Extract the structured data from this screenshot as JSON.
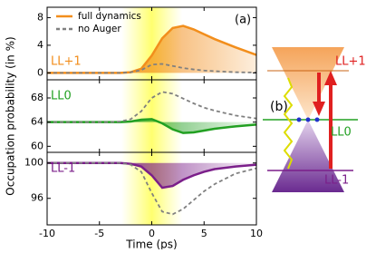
{
  "chart_data": [
    {
      "type": "line",
      "label": "LL+1",
      "annotation": "(a)",
      "label_color": "#f28e1c",
      "x": [
        -10,
        -8,
        -6,
        -4,
        -3,
        -2,
        -1,
        0,
        1,
        2,
        3,
        4,
        5,
        6,
        8,
        10
      ],
      "xlim": [
        -10,
        10
      ],
      "ylim": [
        -1,
        9.5
      ],
      "yticks": [
        0,
        4,
        8
      ],
      "series": [
        {
          "name": "full dynamics",
          "color": "#f28e1c",
          "values": [
            0,
            0,
            0,
            0,
            0,
            0.1,
            0.6,
            2.5,
            5,
            6.5,
            6.8,
            6.3,
            5.6,
            4.9,
            3.7,
            2.6
          ]
        },
        {
          "name": "no Auger",
          "color": "#808080",
          "dashed": true,
          "values": [
            0,
            0,
            0,
            0,
            0,
            0.1,
            0.4,
            1.2,
            1.3,
            1,
            0.7,
            0.5,
            0.35,
            0.25,
            0.1,
            0.05
          ]
        }
      ]
    },
    {
      "type": "line",
      "label": "LL0",
      "label_color": "#22a022",
      "ylabel": "Occupation probability  (in %)",
      "x": [
        -10,
        -8,
        -6,
        -4,
        -3,
        -2,
        -1,
        0,
        1,
        2,
        3,
        4,
        5,
        6,
        8,
        10
      ],
      "xlim": [
        -10,
        10
      ],
      "ylim": [
        59,
        71
      ],
      "yticks": [
        60,
        64,
        68
      ],
      "series": [
        {
          "color": "#22a022",
          "values": [
            64,
            64,
            64,
            64,
            64,
            64.1,
            64.4,
            64.5,
            63.8,
            62.8,
            62.2,
            62.3,
            62.6,
            62.9,
            63.3,
            63.6
          ]
        },
        {
          "color": "#808080",
          "dashed": true,
          "values": [
            64,
            64,
            64,
            64,
            64.1,
            64.5,
            65.8,
            68,
            69,
            68.7,
            67.9,
            67.1,
            66.4,
            65.9,
            65.1,
            64.6
          ]
        }
      ]
    },
    {
      "type": "line",
      "label": "LL-1",
      "label_color": "#7b1f8a",
      "xlabel": "Time  (ps)",
      "x": [
        -10,
        -8,
        -6,
        -4,
        -3,
        -2,
        -1,
        0,
        1,
        2,
        3,
        4,
        5,
        6,
        8,
        10
      ],
      "xlim": [
        -10,
        10
      ],
      "xticks": [
        -10,
        -5,
        0,
        5,
        10
      ],
      "ylim": [
        93,
        101.2
      ],
      "yticks": [
        96,
        100
      ],
      "series": [
        {
          "color": "#7b1f8a",
          "values": [
            100,
            100,
            100,
            100,
            100,
            99.9,
            99.6,
            98.6,
            97.2,
            97.4,
            98.1,
            98.6,
            99,
            99.3,
            99.6,
            99.8
          ]
        },
        {
          "color": "#808080",
          "dashed": true,
          "values": [
            100,
            100,
            100,
            100,
            100,
            99.8,
            99,
            96.6,
            94.5,
            94.2,
            94.8,
            95.8,
            96.8,
            97.6,
            98.8,
            99.4
          ]
        }
      ]
    }
  ],
  "diagram": {
    "panel_label": "(b)",
    "levels": [
      "LL+1",
      "LL0",
      "LL-1"
    ]
  }
}
